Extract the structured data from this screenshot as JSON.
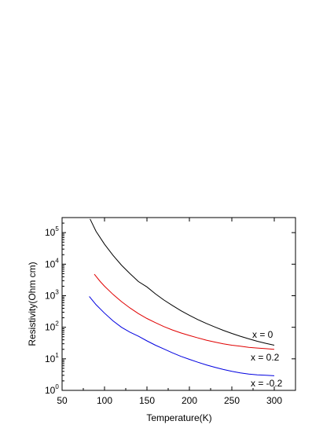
{
  "chart_data": {
    "type": "line",
    "xlabel": "Temperature(K)",
    "ylabel": "Resistivity(Ohm cm)",
    "xlim": [
      50,
      325
    ],
    "ylim": [
      1,
      300000
    ],
    "yscale": "log",
    "xticks": [
      50,
      100,
      150,
      200,
      250,
      300
    ],
    "xtick_labels": [
      "50",
      "100",
      "150",
      "200",
      "250",
      "300"
    ],
    "yticks": [
      1,
      10,
      100,
      1000,
      10000,
      100000
    ],
    "ytick_labels": [
      {
        "base": "10",
        "exp": "0"
      },
      {
        "base": "10",
        "exp": "1"
      },
      {
        "base": "10",
        "exp": "2"
      },
      {
        "base": "10",
        "exp": "3"
      },
      {
        "base": "10",
        "exp": "4"
      },
      {
        "base": "10",
        "exp": "5"
      }
    ],
    "grid": false,
    "series": [
      {
        "name": "x = 0",
        "color": "#000000",
        "x": [
          83,
          90,
          100,
          110,
          120,
          130,
          140,
          150,
          160,
          170,
          180,
          190,
          200,
          210,
          220,
          230,
          240,
          250,
          260,
          270,
          280,
          290,
          300
        ],
        "y": [
          270000,
          110000,
          43000,
          19000,
          9300,
          5000,
          2800,
          1900,
          1150,
          730,
          490,
          335,
          240,
          175,
          132,
          102,
          80,
          64,
          52,
          43,
          36,
          31,
          27
        ]
      },
      {
        "name": "x = 0.2",
        "color": "#e00000",
        "x": [
          88,
          95,
          100,
          110,
          120,
          130,
          140,
          150,
          160,
          170,
          180,
          190,
          200,
          210,
          220,
          230,
          240,
          250,
          260,
          270,
          280,
          290,
          300
        ],
        "y": [
          4800,
          2800,
          2000,
          1100,
          650,
          410,
          270,
          190,
          140,
          105,
          82,
          66,
          55,
          46,
          39,
          34,
          30,
          27,
          25,
          23,
          22,
          21,
          20
        ]
      },
      {
        "name": "x = -0.2",
        "color": "#0000e0",
        "x": [
          82,
          90,
          100,
          110,
          120,
          130,
          140,
          150,
          160,
          170,
          180,
          190,
          200,
          210,
          220,
          230,
          240,
          250,
          260,
          270,
          280,
          290,
          300
        ],
        "y": [
          950,
          520,
          280,
          160,
          100,
          70,
          52,
          37,
          27,
          20.5,
          15.5,
          12,
          9.6,
          7.8,
          6.4,
          5.4,
          4.6,
          4.0,
          3.6,
          3.3,
          3.1,
          3.0,
          2.9
        ]
      }
    ]
  }
}
